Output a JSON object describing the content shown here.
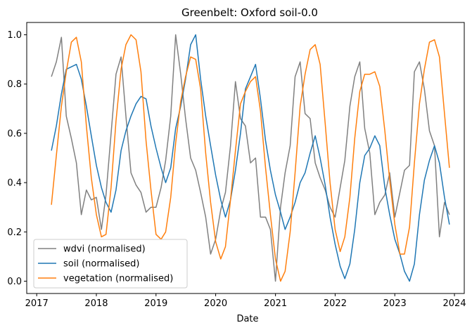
{
  "chart_data": {
    "type": "line",
    "title": "Greenbelt: Oxford soil-0.0",
    "xlabel": "Date",
    "ylabel": "",
    "xlim": [
      "2016-11-01",
      "2024-03-01"
    ],
    "ylim": [
      -0.05,
      1.05
    ],
    "x_ticks": [
      "2017",
      "2018",
      "2019",
      "2020",
      "2021",
      "2022",
      "2023",
      "2024"
    ],
    "y_ticks": [
      "0.0",
      "0.2",
      "0.4",
      "0.6",
      "0.8",
      "1.0"
    ],
    "grid": false,
    "legend_position": "lower-left",
    "series": [
      {
        "name": "wdvi (normalised)",
        "color": "#808080",
        "points": [
          [
            "2017-04-01",
            0.83
          ],
          [
            "2017-05-01",
            0.89
          ],
          [
            "2017-06-01",
            0.99
          ],
          [
            "2017-07-01",
            0.67
          ],
          [
            "2017-08-01",
            0.58
          ],
          [
            "2017-09-01",
            0.48
          ],
          [
            "2017-10-01",
            0.27
          ],
          [
            "2017-11-01",
            0.37
          ],
          [
            "2017-12-01",
            0.33
          ],
          [
            "2018-01-01",
            0.34
          ],
          [
            "2018-02-01",
            0.21
          ],
          [
            "2018-03-01",
            0.35
          ],
          [
            "2018-05-01",
            0.84
          ],
          [
            "2018-06-01",
            0.91
          ],
          [
            "2018-07-01",
            0.67
          ],
          [
            "2018-08-01",
            0.44
          ],
          [
            "2018-09-01",
            0.39
          ],
          [
            "2018-10-01",
            0.36
          ],
          [
            "2018-11-01",
            0.28
          ],
          [
            "2018-12-01",
            0.3
          ],
          [
            "2019-01-01",
            0.3
          ],
          [
            "2019-02-01",
            0.38
          ],
          [
            "2019-03-01",
            0.49
          ],
          [
            "2019-04-01",
            0.67
          ],
          [
            "2019-05-01",
            1.0
          ],
          [
            "2019-06-01",
            0.84
          ],
          [
            "2019-07-01",
            0.66
          ],
          [
            "2019-08-01",
            0.5
          ],
          [
            "2019-09-01",
            0.45
          ],
          [
            "2019-10-01",
            0.36
          ],
          [
            "2019-11-01",
            0.26
          ],
          [
            "2019-12-01",
            0.11
          ],
          [
            "2020-01-01",
            0.17
          ],
          [
            "2020-02-01",
            0.29
          ],
          [
            "2020-03-01",
            0.36
          ],
          [
            "2020-04-01",
            0.55
          ],
          [
            "2020-05-01",
            0.81
          ],
          [
            "2020-06-01",
            0.66
          ],
          [
            "2020-07-01",
            0.63
          ],
          [
            "2020-08-01",
            0.48
          ],
          [
            "2020-09-01",
            0.5
          ],
          [
            "2020-10-01",
            0.26
          ],
          [
            "2020-11-01",
            0.26
          ],
          [
            "2020-12-01",
            0.21
          ],
          [
            "2021-01-01",
            0.0
          ],
          [
            "2021-02-01",
            0.3
          ],
          [
            "2021-03-01",
            0.44
          ],
          [
            "2021-04-01",
            0.55
          ],
          [
            "2021-05-01",
            0.83
          ],
          [
            "2021-06-01",
            0.89
          ],
          [
            "2021-07-01",
            0.68
          ],
          [
            "2021-08-01",
            0.66
          ],
          [
            "2021-09-01",
            0.48
          ],
          [
            "2021-10-01",
            0.42
          ],
          [
            "2021-11-01",
            0.37
          ],
          [
            "2021-12-01",
            0.3
          ],
          [
            "2022-01-01",
            0.26
          ],
          [
            "2022-02-01",
            0.38
          ],
          [
            "2022-03-01",
            0.49
          ],
          [
            "2022-04-01",
            0.71
          ],
          [
            "2022-05-01",
            0.83
          ],
          [
            "2022-06-01",
            0.89
          ],
          [
            "2022-07-01",
            0.62
          ],
          [
            "2022-08-01",
            0.52
          ],
          [
            "2022-09-01",
            0.27
          ],
          [
            "2022-10-01",
            0.32
          ],
          [
            "2022-11-01",
            0.35
          ],
          [
            "2022-12-01",
            0.44
          ],
          [
            "2023-01-01",
            0.26
          ],
          [
            "2023-02-01",
            0.36
          ],
          [
            "2023-03-01",
            0.45
          ],
          [
            "2023-04-01",
            0.47
          ],
          [
            "2023-05-01",
            0.85
          ],
          [
            "2023-06-01",
            0.89
          ],
          [
            "2023-07-01",
            0.78
          ],
          [
            "2023-08-01",
            0.61
          ],
          [
            "2023-09-01",
            0.55
          ],
          [
            "2023-10-01",
            0.18
          ],
          [
            "2023-11-01",
            0.32
          ],
          [
            "2023-12-01",
            0.27
          ]
        ]
      },
      {
        "name": "soil (normalised)",
        "color": "#1f77b4",
        "points": [
          [
            "2017-04-01",
            0.53
          ],
          [
            "2017-05-01",
            0.63
          ],
          [
            "2017-06-01",
            0.76
          ],
          [
            "2017-07-01",
            0.86
          ],
          [
            "2017-09-01",
            0.88
          ],
          [
            "2017-10-01",
            0.82
          ],
          [
            "2017-11-01",
            0.71
          ],
          [
            "2017-12-01",
            0.59
          ],
          [
            "2018-01-01",
            0.47
          ],
          [
            "2018-02-01",
            0.38
          ],
          [
            "2018-03-01",
            0.32
          ],
          [
            "2018-04-01",
            0.28
          ],
          [
            "2018-05-01",
            0.37
          ],
          [
            "2018-06-01",
            0.53
          ],
          [
            "2018-07-01",
            0.61
          ],
          [
            "2018-08-01",
            0.67
          ],
          [
            "2018-09-01",
            0.72
          ],
          [
            "2018-10-01",
            0.75
          ],
          [
            "2018-11-01",
            0.74
          ],
          [
            "2018-12-01",
            0.63
          ],
          [
            "2019-01-01",
            0.54
          ],
          [
            "2019-02-01",
            0.46
          ],
          [
            "2019-03-01",
            0.4
          ],
          [
            "2019-04-01",
            0.46
          ],
          [
            "2019-05-01",
            0.62
          ],
          [
            "2019-06-01",
            0.71
          ],
          [
            "2019-07-01",
            0.82
          ],
          [
            "2019-08-01",
            0.96
          ],
          [
            "2019-09-01",
            1.0
          ],
          [
            "2019-10-01",
            0.82
          ],
          [
            "2019-11-01",
            0.67
          ],
          [
            "2019-12-01",
            0.55
          ],
          [
            "2020-01-01",
            0.43
          ],
          [
            "2020-02-01",
            0.33
          ],
          [
            "2020-03-01",
            0.26
          ],
          [
            "2020-04-01",
            0.33
          ],
          [
            "2020-05-01",
            0.45
          ],
          [
            "2020-06-01",
            0.6
          ],
          [
            "2020-07-01",
            0.78
          ],
          [
            "2020-08-01",
            0.83
          ],
          [
            "2020-09-01",
            0.88
          ],
          [
            "2020-10-01",
            0.74
          ],
          [
            "2020-11-01",
            0.57
          ],
          [
            "2020-12-01",
            0.45
          ],
          [
            "2021-01-01",
            0.35
          ],
          [
            "2021-02-01",
            0.28
          ],
          [
            "2021-03-01",
            0.21
          ],
          [
            "2021-04-01",
            0.26
          ],
          [
            "2021-05-01",
            0.32
          ],
          [
            "2021-06-01",
            0.4
          ],
          [
            "2021-07-01",
            0.44
          ],
          [
            "2021-08-01",
            0.52
          ],
          [
            "2021-09-01",
            0.59
          ],
          [
            "2021-10-01",
            0.5
          ],
          [
            "2021-11-01",
            0.39
          ],
          [
            "2021-12-01",
            0.26
          ],
          [
            "2022-01-01",
            0.15
          ],
          [
            "2022-02-01",
            0.06
          ],
          [
            "2022-03-01",
            0.01
          ],
          [
            "2022-04-01",
            0.07
          ],
          [
            "2022-05-01",
            0.21
          ],
          [
            "2022-06-01",
            0.4
          ],
          [
            "2022-07-01",
            0.51
          ],
          [
            "2022-08-01",
            0.54
          ],
          [
            "2022-09-01",
            0.59
          ],
          [
            "2022-10-01",
            0.55
          ],
          [
            "2022-11-01",
            0.38
          ],
          [
            "2022-12-01",
            0.27
          ],
          [
            "2023-01-01",
            0.17
          ],
          [
            "2023-02-01",
            0.11
          ],
          [
            "2023-03-01",
            0.04
          ],
          [
            "2023-04-01",
            0.0
          ],
          [
            "2023-05-01",
            0.07
          ],
          [
            "2023-06-01",
            0.27
          ],
          [
            "2023-07-01",
            0.41
          ],
          [
            "2023-08-01",
            0.49
          ],
          [
            "2023-09-01",
            0.55
          ],
          [
            "2023-10-01",
            0.48
          ],
          [
            "2023-11-01",
            0.34
          ],
          [
            "2023-12-01",
            0.23
          ]
        ]
      },
      {
        "name": "vegetation (normalised)",
        "color": "#ff7f0e",
        "points": [
          [
            "2017-04-01",
            0.31
          ],
          [
            "2017-05-01",
            0.51
          ],
          [
            "2017-06-01",
            0.71
          ],
          [
            "2017-07-01",
            0.85
          ],
          [
            "2017-08-01",
            0.97
          ],
          [
            "2017-09-01",
            0.99
          ],
          [
            "2017-10-01",
            0.89
          ],
          [
            "2017-11-01",
            0.63
          ],
          [
            "2017-12-01",
            0.42
          ],
          [
            "2018-01-01",
            0.27
          ],
          [
            "2018-02-01",
            0.18
          ],
          [
            "2018-03-01",
            0.19
          ],
          [
            "2018-04-01",
            0.38
          ],
          [
            "2018-05-01",
            0.65
          ],
          [
            "2018-06-01",
            0.86
          ],
          [
            "2018-07-01",
            0.96
          ],
          [
            "2018-08-01",
            1.0
          ],
          [
            "2018-09-01",
            0.98
          ],
          [
            "2018-10-01",
            0.85
          ],
          [
            "2018-11-01",
            0.57
          ],
          [
            "2018-12-01",
            0.37
          ],
          [
            "2019-01-01",
            0.19
          ],
          [
            "2019-02-01",
            0.17
          ],
          [
            "2019-03-01",
            0.2
          ],
          [
            "2019-04-01",
            0.34
          ],
          [
            "2019-05-01",
            0.56
          ],
          [
            "2019-06-01",
            0.73
          ],
          [
            "2019-07-01",
            0.83
          ],
          [
            "2019-08-01",
            0.91
          ],
          [
            "2019-09-01",
            0.9
          ],
          [
            "2019-10-01",
            0.78
          ],
          [
            "2019-11-01",
            0.52
          ],
          [
            "2019-12-01",
            0.32
          ],
          [
            "2020-01-01",
            0.16
          ],
          [
            "2020-02-01",
            0.09
          ],
          [
            "2020-03-01",
            0.14
          ],
          [
            "2020-04-01",
            0.33
          ],
          [
            "2020-05-01",
            0.53
          ],
          [
            "2020-06-01",
            0.72
          ],
          [
            "2020-07-01",
            0.77
          ],
          [
            "2020-08-01",
            0.81
          ],
          [
            "2020-09-01",
            0.83
          ],
          [
            "2020-10-01",
            0.69
          ],
          [
            "2020-11-01",
            0.46
          ],
          [
            "2020-12-01",
            0.27
          ],
          [
            "2021-01-01",
            0.09
          ],
          [
            "2021-02-01",
            0.0
          ],
          [
            "2021-03-01",
            0.04
          ],
          [
            "2021-04-01",
            0.2
          ],
          [
            "2021-05-01",
            0.44
          ],
          [
            "2021-06-01",
            0.71
          ],
          [
            "2021-07-01",
            0.84
          ],
          [
            "2021-08-01",
            0.94
          ],
          [
            "2021-09-01",
            0.96
          ],
          [
            "2021-10-01",
            0.88
          ],
          [
            "2021-11-01",
            0.64
          ],
          [
            "2021-12-01",
            0.4
          ],
          [
            "2022-01-01",
            0.21
          ],
          [
            "2022-02-01",
            0.12
          ],
          [
            "2022-03-01",
            0.18
          ],
          [
            "2022-04-01",
            0.34
          ],
          [
            "2022-05-01",
            0.58
          ],
          [
            "2022-06-01",
            0.77
          ],
          [
            "2022-07-01",
            0.84
          ],
          [
            "2022-08-01",
            0.84
          ],
          [
            "2022-09-01",
            0.85
          ],
          [
            "2022-10-01",
            0.79
          ],
          [
            "2022-11-01",
            0.61
          ],
          [
            "2022-12-01",
            0.41
          ],
          [
            "2023-01-01",
            0.23
          ],
          [
            "2023-02-01",
            0.11
          ],
          [
            "2023-03-01",
            0.11
          ],
          [
            "2023-04-01",
            0.22
          ],
          [
            "2023-05-01",
            0.48
          ],
          [
            "2023-06-01",
            0.72
          ],
          [
            "2023-07-01",
            0.86
          ],
          [
            "2023-08-01",
            0.97
          ],
          [
            "2023-09-01",
            0.98
          ],
          [
            "2023-10-01",
            0.91
          ],
          [
            "2023-11-01",
            0.68
          ],
          [
            "2023-12-01",
            0.46
          ]
        ]
      }
    ]
  }
}
